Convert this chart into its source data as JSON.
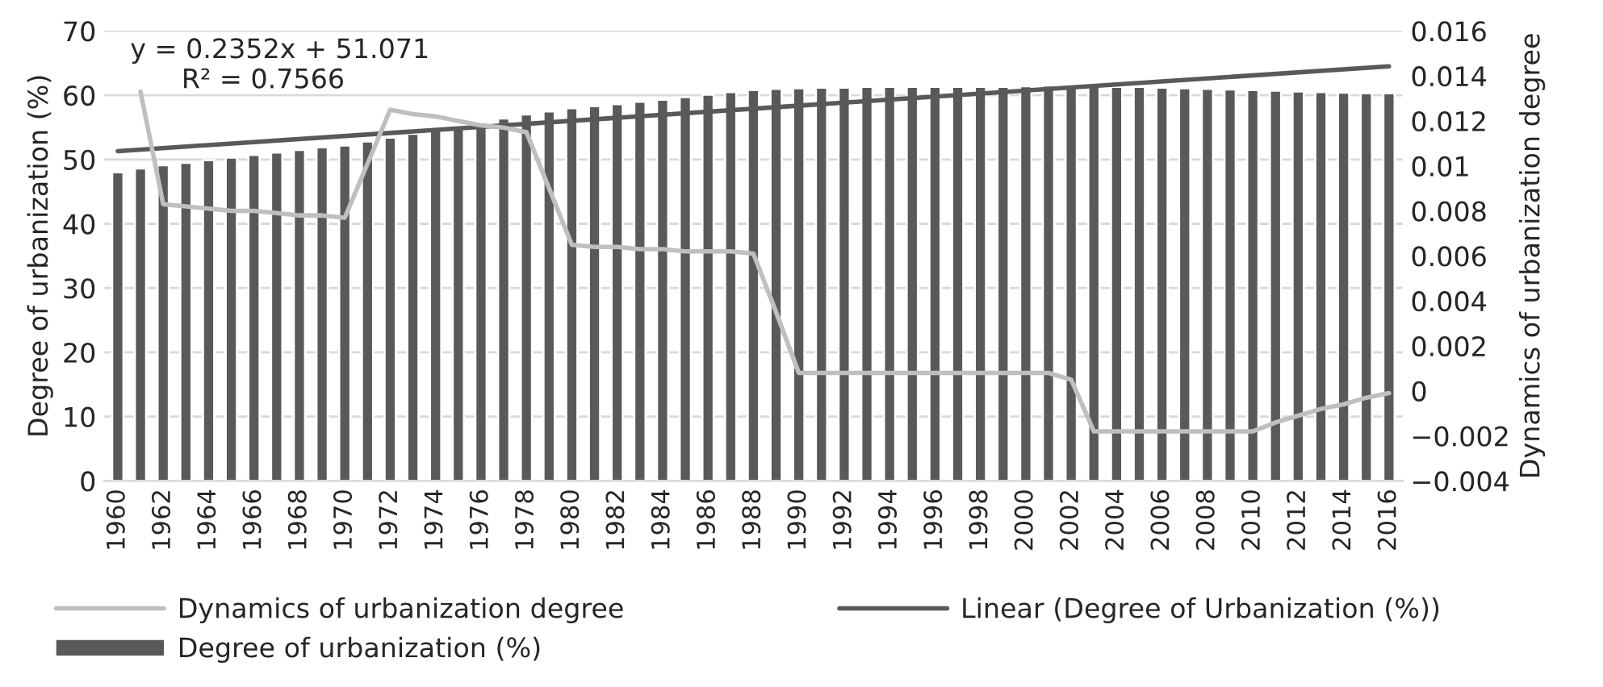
{
  "chart_data": {
    "type": "bar",
    "x": [
      1960,
      1961,
      1962,
      1963,
      1964,
      1965,
      1966,
      1967,
      1968,
      1969,
      1970,
      1971,
      1972,
      1973,
      1974,
      1975,
      1976,
      1977,
      1978,
      1979,
      1980,
      1981,
      1982,
      1983,
      1984,
      1985,
      1986,
      1987,
      1988,
      1989,
      1990,
      1991,
      1992,
      1993,
      1994,
      1995,
      1996,
      1997,
      1998,
      1999,
      2000,
      2001,
      2002,
      2003,
      2004,
      2005,
      2006,
      2007,
      2008,
      2009,
      2010,
      2011,
      2012,
      2013,
      2014,
      2015,
      2016
    ],
    "series": [
      {
        "name": "Dynamics of urbanization degree",
        "type": "line",
        "axis": "y2",
        "color": "#bfbfbf",
        "values": [
          null,
          0.0133,
          0.0083,
          0.0082,
          0.0081,
          0.008,
          0.008,
          0.0079,
          0.0078,
          0.0078,
          0.0077,
          0.0101,
          0.0125,
          0.0123,
          0.0122,
          0.012,
          0.0118,
          0.0117,
          0.0115,
          0.009,
          0.0065,
          0.0064,
          0.0064,
          0.0063,
          0.0063,
          0.0062,
          0.0062,
          0.0062,
          0.0061,
          0.0035,
          0.0008,
          0.0008,
          0.0008,
          0.0008,
          0.0008,
          0.0008,
          0.0008,
          0.0008,
          0.0008,
          0.0008,
          0.0008,
          0.0008,
          0.0005,
          -0.0018,
          -0.0018,
          -0.0018,
          -0.0018,
          -0.0018,
          -0.0018,
          -0.0018,
          -0.0018,
          -0.0014,
          -0.0011,
          -0.0008,
          -0.0006,
          -0.0003,
          -0.0001
        ]
      },
      {
        "name": "Linear (Degree of Urbanization (%))",
        "type": "line",
        "color": "#595959",
        "x": [
          1960,
          2016
        ],
        "values": [
          51.3,
          64.5
        ]
      },
      {
        "name": "Degree of urbanization (%)",
        "color": "#595959",
        "values": [
          48.0,
          48.6,
          49.1,
          49.5,
          49.9,
          50.3,
          50.7,
          51.1,
          51.5,
          51.9,
          52.2,
          52.8,
          53.4,
          54.0,
          54.6,
          55.2,
          55.8,
          56.4,
          57.0,
          57.5,
          58.0,
          58.3,
          58.6,
          59.0,
          59.3,
          59.7,
          60.1,
          60.5,
          60.8,
          61.0,
          61.1,
          61.2,
          61.2,
          61.3,
          61.3,
          61.3,
          61.3,
          61.3,
          61.3,
          61.3,
          61.4,
          61.5,
          61.5,
          61.4,
          61.3,
          61.3,
          61.2,
          61.1,
          61.0,
          60.9,
          60.8,
          60.7,
          60.6,
          60.5,
          60.4,
          60.3,
          60.3
        ]
      }
    ],
    "xlim": [
      1959.4,
      2016.6
    ],
    "xticks": [
      1960,
      1962,
      1964,
      1966,
      1968,
      1970,
      1972,
      1974,
      1976,
      1978,
      1980,
      1982,
      1984,
      1986,
      1988,
      1990,
      1992,
      1994,
      1996,
      1998,
      2000,
      2002,
      2004,
      2006,
      2008,
      2010,
      2012,
      2014,
      2016
    ],
    "ylim": [
      0,
      70
    ],
    "yticks": [
      0,
      10,
      20,
      30,
      40,
      50,
      60,
      70
    ],
    "y2lim": [
      -0.004,
      0.016
    ],
    "y2ticks": [
      {
        "value": -0.004,
        "label": "−0.004"
      },
      {
        "value": -0.002,
        "label": "−0.002"
      },
      0,
      0.002,
      0.004,
      0.006,
      0.008,
      0.01,
      0.012,
      0.014,
      0.016
    ],
    "ylabel": "Degree of urbanization (%)",
    "y2label": "Dynamics of urbanization degree",
    "annotations": [
      "y = 0.2352x + 51.071\n      R² = 0.7566"
    ],
    "grid": "y",
    "legend": "bottom",
    "marker": "none",
    "line_style": "solid"
  }
}
